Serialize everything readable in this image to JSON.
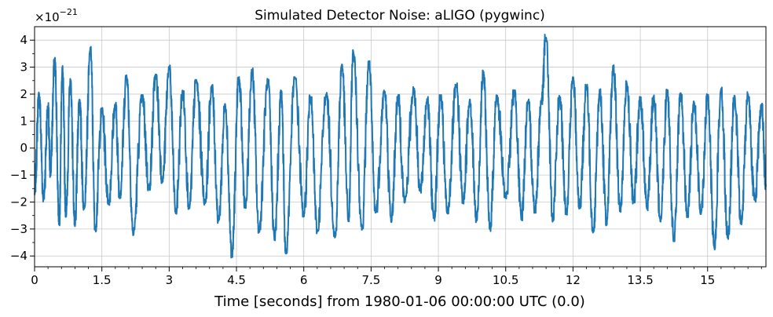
{
  "chart_data": {
    "type": "line",
    "title": "Simulated Detector Noise: aLIGO (pygwinc)",
    "xlabel": "Time [seconds] from 1980-01-06 00:00:00 UTC (0.0)",
    "ylabel": "",
    "y_offset_label": "×10",
    "y_offset_exponent": "−21",
    "xlim": [
      0,
      16.3
    ],
    "ylim": [
      -4.4,
      4.5
    ],
    "x_ticks": [
      0,
      1.5,
      3,
      4.5,
      6,
      7.5,
      9,
      10.5,
      12,
      13.5,
      15
    ],
    "x_tick_labels": [
      "0",
      "1.5",
      "3",
      "4.5",
      "6",
      "7.5",
      "9",
      "10.5",
      "12",
      "13.5",
      "15"
    ],
    "y_ticks": [
      4,
      3,
      2,
      1,
      0,
      -1,
      -2,
      -3,
      -4
    ],
    "y_tick_labels": [
      "4",
      "3",
      "2",
      "1",
      "0",
      "−1",
      "−2",
      "−3",
      "−4"
    ],
    "grid": true,
    "line_color": "#1f77b4",
    "series": [
      {
        "values_scale": 1e-21,
        "x": [
          0,
          0.1,
          0.2,
          0.3,
          0.35,
          0.45,
          0.55,
          0.62,
          0.7,
          0.8,
          0.9,
          1.0,
          1.1,
          1.25,
          1.35,
          1.5,
          1.65,
          1.8,
          1.9,
          2.05,
          2.2,
          2.4,
          2.55,
          2.7,
          2.85,
          3.0,
          3.15,
          3.3,
          3.45,
          3.6,
          3.8,
          3.95,
          4.1,
          4.25,
          4.4,
          4.55,
          4.7,
          4.85,
          5.0,
          5.2,
          5.35,
          5.5,
          5.6,
          5.8,
          6.0,
          6.15,
          6.3,
          6.5,
          6.7,
          6.85,
          7.0,
          7.1,
          7.3,
          7.45,
          7.6,
          7.8,
          7.95,
          8.1,
          8.25,
          8.45,
          8.6,
          8.75,
          8.9,
          9.05,
          9.2,
          9.4,
          9.55,
          9.7,
          9.85,
          10.0,
          10.15,
          10.3,
          10.5,
          10.7,
          10.85,
          11.0,
          11.15,
          11.3,
          11.4,
          11.55,
          11.7,
          11.85,
          12.0,
          12.15,
          12.3,
          12.45,
          12.6,
          12.75,
          12.9,
          13.05,
          13.2,
          13.35,
          13.5,
          13.65,
          13.8,
          13.95,
          14.1,
          14.25,
          14.4,
          14.55,
          14.7,
          14.85,
          15.0,
          15.15,
          15.3,
          15.45,
          15.6,
          15.75,
          15.9,
          16.05,
          16.2,
          16.3
        ],
        "values": [
          -1.7,
          2.0,
          -1.9,
          1.5,
          -1.0,
          3.3,
          -2.8,
          3.0,
          -2.5,
          2.5,
          -2.9,
          1.8,
          -2.2,
          3.7,
          -3.0,
          1.4,
          -2.0,
          1.6,
          -1.8,
          2.7,
          -3.2,
          1.9,
          -1.5,
          2.7,
          -1.2,
          3.0,
          -2.4,
          2.1,
          -2.2,
          2.5,
          -2.0,
          2.3,
          -2.7,
          1.6,
          -4.0,
          2.6,
          -2.2,
          2.9,
          -3.1,
          2.5,
          -3.4,
          2.1,
          -3.9,
          2.6,
          -2.5,
          1.9,
          -3.1,
          2.0,
          -3.3,
          3.1,
          -2.7,
          3.6,
          -3.0,
          3.2,
          -2.4,
          2.1,
          -2.7,
          1.9,
          -2.0,
          2.2,
          -1.6,
          1.8,
          -2.6,
          1.9,
          -2.4,
          2.3,
          -2.0,
          1.8,
          -2.7,
          2.8,
          -3.0,
          1.9,
          -1.8,
          2.1,
          -2.6,
          1.7,
          -2.3,
          1.8,
          4.1,
          -2.7,
          1.9,
          -2.4,
          2.6,
          -2.2,
          2.3,
          -3.1,
          2.1,
          -2.8,
          3.0,
          -2.3,
          2.4,
          -2.0,
          1.8,
          -2.2,
          1.9,
          -2.7,
          2.1,
          -3.4,
          2.0,
          -2.5,
          1.7,
          -2.4,
          1.9,
          -3.7,
          2.2,
          -3.3,
          1.9,
          -2.8,
          2.0,
          -1.9,
          1.6,
          -1.4
        ]
      }
    ]
  }
}
